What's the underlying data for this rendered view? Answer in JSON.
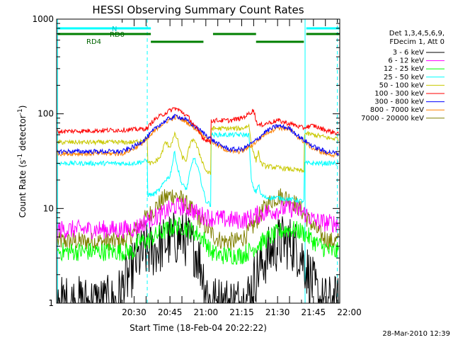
{
  "chart_data": {
    "type": "line",
    "title": "HESSI Observing Summary Count Rates",
    "xlabel": "Start Time (18-Feb-04 20:22:22)",
    "ylabel_main": "Count Rate (s",
    "ylabel_sup1": "-1",
    "ylabel_mid": " detector",
    "ylabel_sup2": "-1",
    "ylabel_end": ")",
    "y_scale": "log",
    "ylim": [
      1,
      1000
    ],
    "xlim_minutes": [
      -22.4,
      96.0
    ],
    "x_ticks": [
      {
        "label": "20:30",
        "m": 10
      },
      {
        "label": "20:45",
        "m": 25
      },
      {
        "label": "21:00",
        "m": 40
      },
      {
        "label": "21:15",
        "m": 55
      },
      {
        "label": "21:30",
        "m": 70
      },
      {
        "label": "21:45",
        "m": 85
      },
      {
        "label": "22:00",
        "m": 100
      }
    ],
    "y_ticks": [
      {
        "label": "1",
        "v": 1
      },
      {
        "label": "10",
        "v": 10
      },
      {
        "label": "100",
        "v": 100
      },
      {
        "label": "1000",
        "v": 1000
      }
    ],
    "legend_header": [
      "Det 1,3,4,5,6,9,",
      "FDecim 1, Att 0"
    ],
    "flags": [
      {
        "label": "N",
        "color": "#00ffff",
        "segments": [
          [
            -22,
            17
          ],
          [
            82,
            96
          ]
        ]
      },
      {
        "label": "RD0",
        "color": "#007f00",
        "segments": [
          [
            -22,
            17
          ],
          [
            43,
            61
          ],
          [
            82,
            96
          ]
        ]
      },
      {
        "label": "RD4",
        "color": "#007f00",
        "segments": [
          [
            17,
            39
          ],
          [
            61,
            81
          ]
        ]
      }
    ],
    "series": [
      {
        "name": "3 - 6 keV",
        "color": "#000000",
        "x": [
          -22,
          2,
          5,
          8,
          11,
          14,
          15.5,
          18,
          21,
          24,
          27,
          30,
          33,
          36,
          38,
          40,
          42,
          45,
          50,
          55,
          58,
          61,
          64,
          67,
          70,
          73,
          76,
          79,
          81,
          83,
          85,
          88,
          92,
          96
        ],
        "y": [
          1,
          1,
          1.4,
          2.0,
          2.8,
          3.3,
          3.5,
          3.6,
          4.0,
          4.5,
          4.8,
          5.0,
          4.5,
          3.5,
          2.5,
          1.5,
          1,
          1,
          1,
          1,
          1.2,
          2.0,
          2.8,
          3.5,
          4.2,
          4.5,
          4.2,
          3.5,
          2.8,
          2.0,
          1.5,
          1,
          1,
          1
        ]
      },
      {
        "name": "6 - 12 keV",
        "color": "#ff00ff",
        "x": [
          -22,
          5,
          10,
          12,
          14,
          15.5,
          18,
          21,
          24,
          27,
          30,
          33,
          36,
          38,
          40,
          42,
          45,
          50,
          55,
          58,
          61,
          64,
          67,
          70,
          73,
          76,
          79,
          81,
          83,
          85,
          88,
          92,
          96
        ],
        "y": [
          6,
          6,
          6.2,
          6.5,
          7,
          7.5,
          8,
          8.5,
          9.5,
          10.5,
          10.5,
          10,
          9,
          8.5,
          8.2,
          8,
          7.8,
          7.6,
          7.5,
          7.8,
          8.5,
          9,
          9.3,
          9.6,
          10,
          10,
          9.5,
          9,
          8.3,
          7.5,
          7.2,
          7,
          7
        ]
      },
      {
        "name": "12 - 25 keV",
        "color": "#00ff00",
        "x": [
          -22,
          10,
          12,
          15.5,
          18,
          21,
          24,
          27,
          30,
          33,
          36,
          38,
          40,
          42,
          45,
          50,
          55,
          58,
          61,
          64,
          67,
          70,
          73,
          76,
          79,
          81,
          83,
          85,
          88,
          92,
          96
        ],
        "y": [
          3.5,
          3.5,
          4.5,
          4.5,
          5,
          5.5,
          6,
          6.5,
          6.5,
          6,
          5.5,
          5,
          4.5,
          3.5,
          3.2,
          3.2,
          3.2,
          3.5,
          4,
          4.5,
          5,
          5.5,
          6,
          6,
          5.8,
          5.5,
          5,
          4.5,
          4,
          3.5,
          3.5
        ]
      },
      {
        "name": "25 - 50 keV",
        "color": "#00ffff",
        "x": [
          -22,
          10,
          15.5,
          15.6,
          18,
          21,
          23,
          25,
          27,
          28,
          30,
          32,
          33,
          35,
          37,
          40,
          42,
          42.1,
          50,
          55,
          58,
          59,
          60,
          61,
          62,
          63,
          65,
          70,
          75,
          80,
          81,
          81.1,
          85,
          88,
          92,
          96
        ],
        "y": [
          30,
          30,
          32,
          14,
          14,
          16,
          20,
          22,
          40,
          28,
          18,
          16,
          22,
          35,
          25,
          12,
          11,
          60,
          60,
          60,
          60,
          20,
          16,
          15,
          18,
          14,
          13,
          13,
          12.5,
          12,
          12,
          30,
          30,
          30,
          30,
          30
        ]
      },
      {
        "name": "50 - 100 keV",
        "color": "#c8c800",
        "x": [
          -22,
          10,
          15.5,
          15.6,
          18,
          21,
          23,
          25,
          27,
          28,
          30,
          32,
          33,
          35,
          37,
          40,
          42,
          42.1,
          50,
          55,
          58,
          59,
          60,
          61,
          62,
          63,
          65,
          70,
          75,
          80,
          81,
          81.1,
          85,
          88,
          92,
          96
        ],
        "y": [
          50,
          50,
          55,
          30,
          30,
          35,
          50,
          45,
          60,
          55,
          35,
          32,
          45,
          55,
          40,
          25,
          23,
          70,
          70,
          70,
          75,
          50,
          38,
          32,
          40,
          30,
          28,
          27,
          26,
          25,
          24,
          62,
          60,
          58,
          55,
          55
        ]
      },
      {
        "name": "100 - 300 keV",
        "color": "#ff0000",
        "x": [
          -22,
          10,
          15.5,
          18,
          21,
          24,
          27,
          30,
          33,
          36,
          39,
          42,
          42.1,
          50,
          55,
          58,
          60,
          61,
          62,
          66,
          70,
          74,
          78,
          81,
          81.1,
          85,
          88,
          92,
          96
        ],
        "y": [
          65,
          68,
          70,
          85,
          95,
          105,
          115,
          105,
          90,
          70,
          55,
          50,
          85,
          85,
          90,
          100,
          110,
          85,
          75,
          80,
          85,
          80,
          75,
          70,
          72,
          75,
          70,
          65,
          62
        ]
      },
      {
        "name": "300 - 800 keV",
        "color": "#0000ff",
        "x": [
          -22,
          5,
          10,
          15,
          20,
          25,
          28,
          31,
          35,
          40,
          45,
          50,
          55,
          60,
          65,
          70,
          75,
          80,
          85,
          90,
          96
        ],
        "y": [
          40,
          40,
          45,
          55,
          75,
          90,
          95,
          88,
          75,
          60,
          48,
          42,
          42,
          50,
          65,
          75,
          70,
          55,
          45,
          40,
          38
        ]
      },
      {
        "name": "800 - 7000 keV",
        "color": "#ff8000",
        "x": [
          -22,
          5,
          10,
          15,
          20,
          25,
          28,
          31,
          35,
          40,
          45,
          50,
          55,
          60,
          65,
          70,
          75,
          80,
          85,
          90,
          96
        ],
        "y": [
          38,
          38,
          43,
          52,
          72,
          88,
          92,
          85,
          72,
          57,
          46,
          40,
          40,
          48,
          62,
          72,
          68,
          53,
          43,
          38,
          36
        ]
      },
      {
        "name": "7000 - 20000 keV",
        "color": "#808000",
        "x": [
          -22,
          5,
          8,
          11,
          14,
          17,
          20,
          23,
          26,
          29,
          32,
          35,
          38,
          41,
          44,
          47,
          50,
          53,
          56,
          59,
          62,
          65,
          68,
          71,
          74,
          77,
          80,
          83,
          86,
          89,
          92,
          96
        ],
        "y": [
          4.5,
          4.5,
          5,
          6,
          7.5,
          9,
          11,
          13,
          14,
          13,
          11,
          9,
          7.5,
          6,
          5,
          4.5,
          4.5,
          4.5,
          5,
          6,
          8,
          10.5,
          12.5,
          13.5,
          13,
          11.5,
          9.5,
          7.5,
          6,
          5,
          4.5,
          4.5
        ]
      }
    ],
    "vlines": [
      {
        "m": -22,
        "color": "#00ffff",
        "style": "solid"
      },
      {
        "m": 15.5,
        "color": "#00ffff",
        "style": "dashed"
      },
      {
        "m": 81.5,
        "color": "#00ffff",
        "style": "solid"
      },
      {
        "m": 95,
        "color": "#00ffff",
        "style": "dashed"
      }
    ],
    "timestamp": "28-Mar-2010 12:39"
  }
}
